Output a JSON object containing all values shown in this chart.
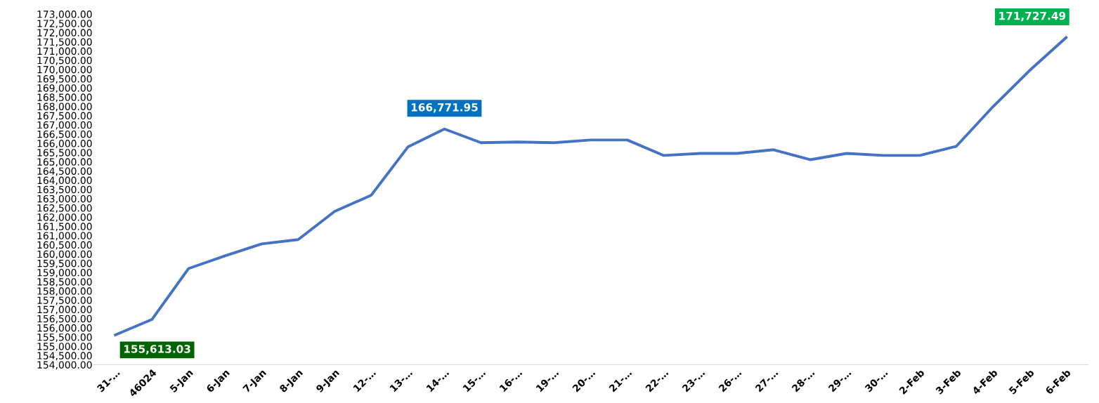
{
  "chart_data": {
    "type": "line",
    "categories": [
      "31-…",
      "46024",
      "5-Jan",
      "6-Jan",
      "7-Jan",
      "8-Jan",
      "9-Jan",
      "12-…",
      "13-…",
      "14-…",
      "15-…",
      "16-…",
      "19-…",
      "20-…",
      "21-…",
      "22-…",
      "23-…",
      "26-…",
      "27-…",
      "28-…",
      "29-…",
      "30-…",
      "2-Feb",
      "3-Feb",
      "4-Feb",
      "5-Feb",
      "6-Feb"
    ],
    "series": [
      {
        "color": "#4472c4",
        "values": [
          155613.03,
          156450,
          159210,
          159900,
          160550,
          160780,
          162310,
          163190,
          165800,
          166771.95,
          166030,
          166070,
          166030,
          166180,
          166180,
          165340,
          165450,
          165450,
          165650,
          165110,
          165450,
          165340,
          165340,
          165840,
          167980,
          169940,
          171727.49
        ],
        "value_labels": [
          "155,613.03",
          null,
          null,
          null,
          null,
          null,
          null,
          null,
          null,
          "166,771.95",
          null,
          null,
          null,
          null,
          null,
          null,
          null,
          null,
          null,
          null,
          null,
          null,
          null,
          null,
          null,
          null,
          "171,727.49"
        ]
      }
    ],
    "ylim": [
      154000,
      173000
    ],
    "yticks": [
      {
        "value": 154000,
        "label": "154,000.00"
      },
      {
        "value": 154500,
        "label": "154,500.00"
      },
      {
        "value": 155000,
        "label": "155,000.00"
      },
      {
        "value": 155500,
        "label": "155,500.00"
      },
      {
        "value": 156000,
        "label": "156,000.00"
      },
      {
        "value": 156500,
        "label": "156,500.00"
      },
      {
        "value": 157000,
        "label": "157,000.00"
      },
      {
        "value": 157500,
        "label": "157,500.00"
      },
      {
        "value": 158000,
        "label": "158,000.00"
      },
      {
        "value": 158500,
        "label": "158,500.00"
      },
      {
        "value": 159000,
        "label": "159,000.00"
      },
      {
        "value": 159500,
        "label": "159,500.00"
      },
      {
        "value": 160000,
        "label": "160,000.00"
      },
      {
        "value": 160500,
        "label": "160,500.00"
      },
      {
        "value": 161000,
        "label": "161,000.00"
      },
      {
        "value": 161500,
        "label": "161,500.00"
      },
      {
        "value": 162000,
        "label": "162,000.00"
      },
      {
        "value": 162500,
        "label": "162,500.00"
      },
      {
        "value": 163000,
        "label": "163,000.00"
      },
      {
        "value": 163500,
        "label": "163,500.00"
      },
      {
        "value": 164000,
        "label": "164,000.00"
      },
      {
        "value": 164500,
        "label": "164,500.00"
      },
      {
        "value": 165000,
        "label": "165,000.00"
      },
      {
        "value": 165500,
        "label": "165,500.00"
      },
      {
        "value": 166000,
        "label": "166,000.00"
      },
      {
        "value": 166500,
        "label": "166,500.00"
      },
      {
        "value": 167000,
        "label": "167,000.00"
      },
      {
        "value": 167500,
        "label": "167,500.00"
      },
      {
        "value": 168000,
        "label": "168,000.00"
      },
      {
        "value": 168500,
        "label": "168,500.00"
      },
      {
        "value": 169000,
        "label": "169,000.00"
      },
      {
        "value": 169500,
        "label": "169,500.00"
      },
      {
        "value": 170000,
        "label": "170,000.00"
      },
      {
        "value": 170500,
        "label": "170,500.00"
      },
      {
        "value": 171000,
        "label": "171,000.00"
      },
      {
        "value": 171500,
        "label": "171,500.00"
      },
      {
        "value": 172000,
        "label": "172,000.00"
      },
      {
        "value": 172500,
        "label": "172,500.00"
      },
      {
        "value": 173000,
        "label": "173,000.00"
      }
    ],
    "grid": false,
    "legend": false,
    "marker": "none",
    "line_style": "solid"
  }
}
